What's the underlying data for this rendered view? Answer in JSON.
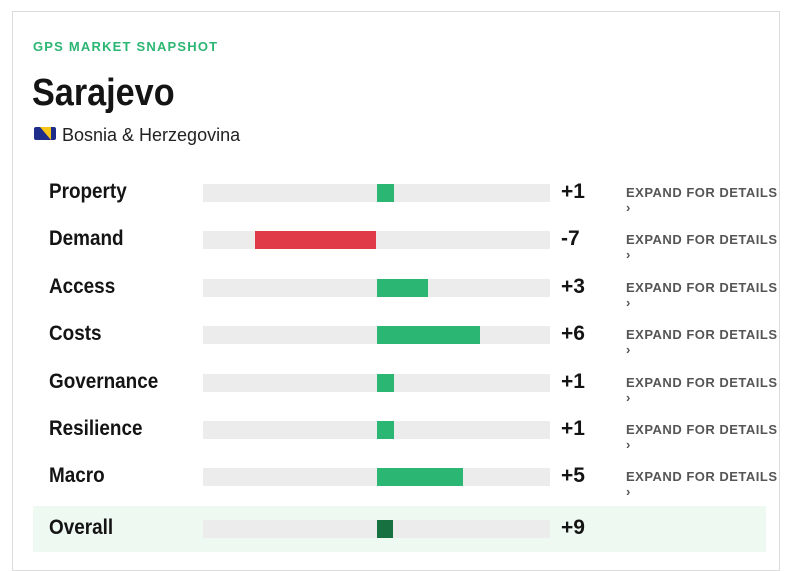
{
  "header": {
    "eyebrow": "GPS MARKET SNAPSHOT",
    "title": "Sarajevo",
    "country": "Bosnia & Herzegovina"
  },
  "rows": [
    {
      "label": "Property",
      "value": 1,
      "value_label": "+1",
      "action": "EXPAND FOR DETAILS ›"
    },
    {
      "label": "Demand",
      "value": -7,
      "value_label": "-7",
      "action": "EXPAND FOR DETAILS ›"
    },
    {
      "label": "Access",
      "value": 3,
      "value_label": "+3",
      "action": "EXPAND FOR DETAILS ›"
    },
    {
      "label": "Costs",
      "value": 6,
      "value_label": "+6",
      "action": "EXPAND FOR DETAILS ›"
    },
    {
      "label": "Governance",
      "value": 1,
      "value_label": "+1",
      "action": "EXPAND FOR DETAILS ›"
    },
    {
      "label": "Resilience",
      "value": 1,
      "value_label": "+1",
      "action": "EXPAND FOR DETAILS ›"
    },
    {
      "label": "Macro",
      "value": 5,
      "value_label": "+5",
      "action": "EXPAND FOR DETAILS ›"
    }
  ],
  "overall": {
    "label": "Overall",
    "value": 9,
    "value_label": "+9"
  }
}
